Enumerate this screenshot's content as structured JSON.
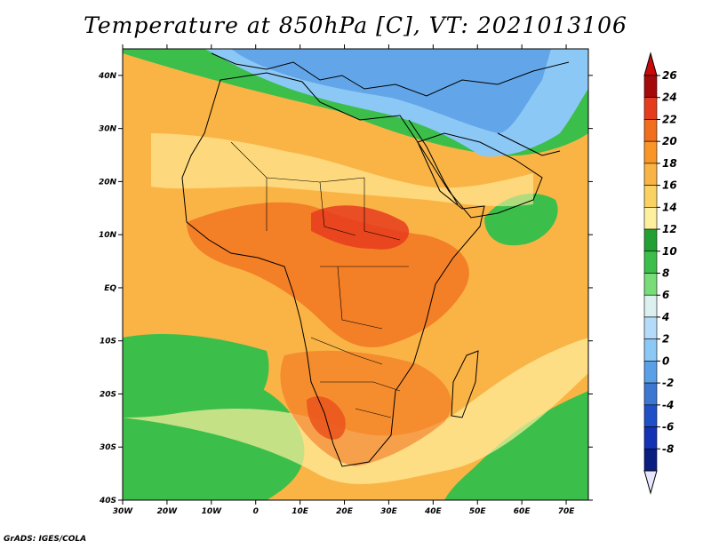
{
  "title": "Temperature at 850hPa [C], VT: 2021013106",
  "footer": "GrADS: IGES/COLA",
  "map": {
    "lat_range": [
      -40,
      45
    ],
    "lon_range": [
      -30,
      75
    ],
    "lat_ticks": [
      {
        "value": 40,
        "label": "40N"
      },
      {
        "value": 30,
        "label": "30N"
      },
      {
        "value": 20,
        "label": "20N"
      },
      {
        "value": 10,
        "label": "10N"
      },
      {
        "value": 0,
        "label": "EQ"
      },
      {
        "value": -10,
        "label": "10S"
      },
      {
        "value": -20,
        "label": "20S"
      },
      {
        "value": -30,
        "label": "30S"
      },
      {
        "value": -40,
        "label": "40S"
      }
    ],
    "lon_ticks": [
      {
        "value": -30,
        "label": "30W"
      },
      {
        "value": -20,
        "label": "20W"
      },
      {
        "value": -10,
        "label": "10W"
      },
      {
        "value": 0,
        "label": "0"
      },
      {
        "value": 10,
        "label": "10E"
      },
      {
        "value": 20,
        "label": "20E"
      },
      {
        "value": 30,
        "label": "30E"
      },
      {
        "value": 40,
        "label": "40E"
      },
      {
        "value": 50,
        "label": "50E"
      },
      {
        "value": 60,
        "label": "60E"
      },
      {
        "value": 70,
        "label": "70E"
      }
    ]
  },
  "colorbar": {
    "labels": [
      "26",
      "24",
      "22",
      "20",
      "18",
      "16",
      "14",
      "12",
      "10",
      "8",
      "6",
      "4",
      "2",
      "0",
      "-2",
      "-4",
      "-6",
      "-8"
    ],
    "colors": [
      "#a50a0a",
      "#e63c1e",
      "#f06e1e",
      "#fa9628",
      "#fab446",
      "#fad264",
      "#fff0a0",
      "#23a034",
      "#3cbe4b",
      "#78dc78",
      "#dcf0f0",
      "#b4dcfa",
      "#8cc8f5",
      "#5aa0e6",
      "#3c78d2",
      "#2050c8",
      "#1432b4",
      "#0a1e82"
    ],
    "extend_top_color": "#c80a0a",
    "extend_bottom_color": "#e6e6ff"
  },
  "background_colors": {
    "sea_pale": "#fff0a0",
    "warm": "#fab446",
    "hot": "#f06e1e",
    "cool_green": "#3cbe4b",
    "cold_blue": "#8cc8f5",
    "coldest_blue": "#5aa0e6"
  }
}
